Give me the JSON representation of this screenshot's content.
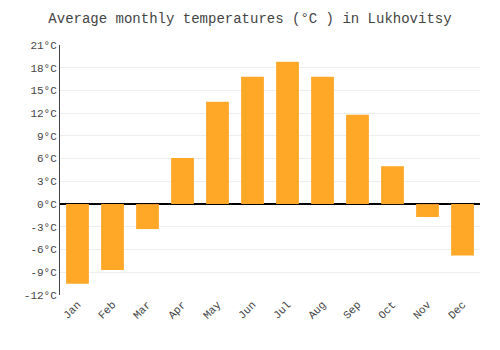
{
  "chart_data": {
    "type": "bar",
    "title": "Average monthly temperatures (°C ) in Lukhovitsy",
    "categories": [
      "Jan",
      "Feb",
      "Mar",
      "Apr",
      "May",
      "Jun",
      "Jul",
      "Aug",
      "Sep",
      "Oct",
      "Nov",
      "Dec"
    ],
    "values": [
      -10.5,
      -8.7,
      -3.3,
      6.1,
      13.5,
      16.8,
      18.8,
      16.8,
      11.8,
      5.0,
      -1.7,
      -6.8
    ],
    "color": "#FFA726",
    "ylim": [
      -12,
      21
    ],
    "yticks": [
      {
        "value": -12,
        "label": "-12°C"
      },
      {
        "value": -9,
        "label": "-9°C"
      },
      {
        "value": -6,
        "label": "-6°C"
      },
      {
        "value": -3,
        "label": "-3°C"
      },
      {
        "value": 0,
        "label": "0°C"
      },
      {
        "value": 3,
        "label": "3°C"
      },
      {
        "value": 6,
        "label": "6°C"
      },
      {
        "value": 9,
        "label": "9°C"
      },
      {
        "value": 12,
        "label": "12°C"
      },
      {
        "value": 15,
        "label": "15°C"
      },
      {
        "value": 18,
        "label": "18°C"
      },
      {
        "value": 21,
        "label": "21°C"
      }
    ],
    "grid": true
  }
}
